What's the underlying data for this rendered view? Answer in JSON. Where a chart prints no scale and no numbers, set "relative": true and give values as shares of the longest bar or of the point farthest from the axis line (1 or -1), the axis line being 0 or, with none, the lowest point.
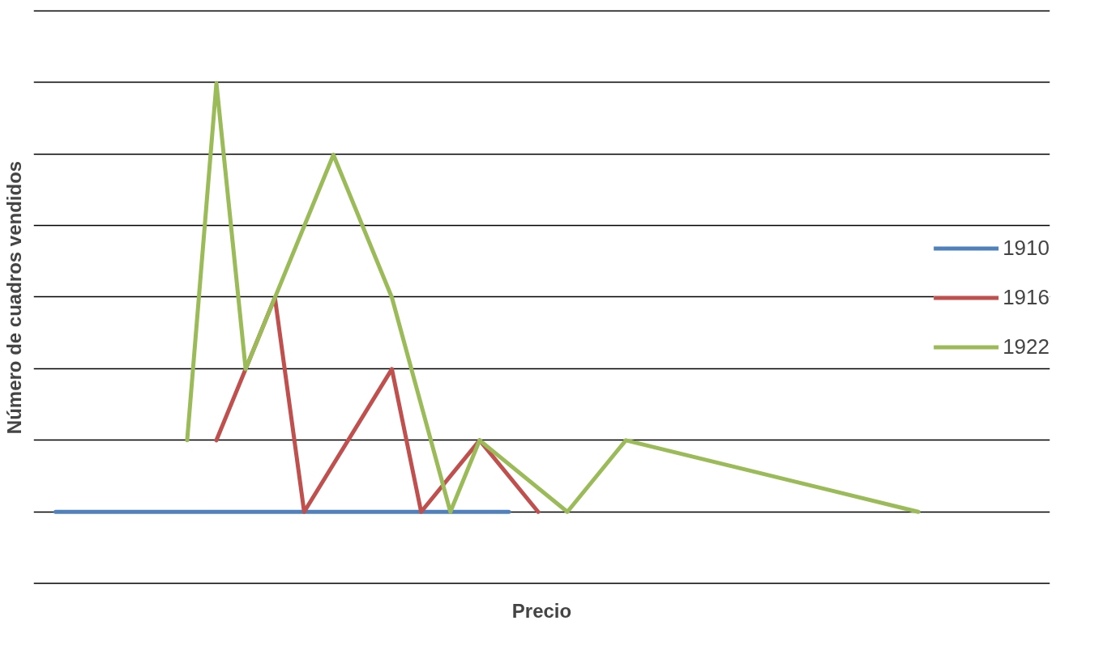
{
  "chart_data": {
    "type": "line",
    "relative": true,
    "xlabel": "Precio",
    "ylabel": "Número de cuadros vendidos",
    "grid": "y",
    "legend": "right",
    "line_style": "solid",
    "marker": "none",
    "categories": [
      null,
      null,
      null,
      null,
      null,
      null,
      null,
      null,
      null,
      null,
      null,
      null,
      null,
      null,
      null,
      null,
      null,
      null,
      null,
      null,
      null,
      null,
      null,
      null,
      null,
      null,
      null,
      null,
      null,
      null,
      null,
      null,
      null,
      null,
      null,
      null,
      null,
      null,
      null,
      null,
      null,
      null,
      null,
      null,
      null,
      null,
      null,
      null,
      null,
      null,
      null,
      null,
      null,
      null,
      null,
      null,
      null,
      null,
      null,
      null
    ],
    "series": [
      {
        "name": "1910",
        "color": "#4f81bd",
        "values": [
          0,
          0,
          0,
          0,
          0,
          0,
          0,
          0,
          0,
          0,
          0,
          0,
          0,
          0,
          0,
          0,
          0,
          0,
          0,
          0,
          0,
          0,
          0,
          0,
          0,
          0,
          0,
          0,
          0,
          0,
          0,
          0,
          null,
          null,
          null,
          null,
          null,
          null,
          null,
          null,
          null,
          null,
          null,
          null,
          null,
          null,
          null,
          null,
          null,
          null,
          null,
          null,
          null,
          null,
          null,
          null,
          null,
          null,
          null,
          null
        ]
      },
      {
        "name": "1916",
        "color": "#c0504d",
        "values": [
          null,
          null,
          null,
          null,
          null,
          null,
          null,
          null,
          null,
          null,
          null,
          0.167,
          null,
          null,
          null,
          0.5,
          null,
          0,
          null,
          null,
          null,
          null,
          null,
          0.333,
          null,
          0,
          null,
          null,
          null,
          0.167,
          null,
          null,
          null,
          0,
          null,
          null,
          null,
          null,
          null,
          null,
          null,
          null,
          null,
          null,
          null,
          null,
          null,
          null,
          null,
          null,
          null,
          null,
          null,
          null,
          null,
          null,
          null,
          null,
          null,
          null
        ]
      },
      {
        "name": "1922",
        "color": "#9bbb59",
        "values": [
          null,
          null,
          null,
          null,
          null,
          null,
          null,
          null,
          null,
          0.167,
          null,
          1,
          null,
          0.333,
          null,
          null,
          null,
          null,
          null,
          0.833,
          null,
          null,
          null,
          0.5,
          null,
          null,
          null,
          0,
          null,
          0.167,
          null,
          null,
          null,
          null,
          null,
          0,
          null,
          null,
          null,
          0.167,
          null,
          null,
          null,
          null,
          null,
          null,
          null,
          null,
          null,
          null,
          null,
          null,
          null,
          null,
          null,
          null,
          null,
          null,
          null,
          0
        ]
      }
    ]
  }
}
